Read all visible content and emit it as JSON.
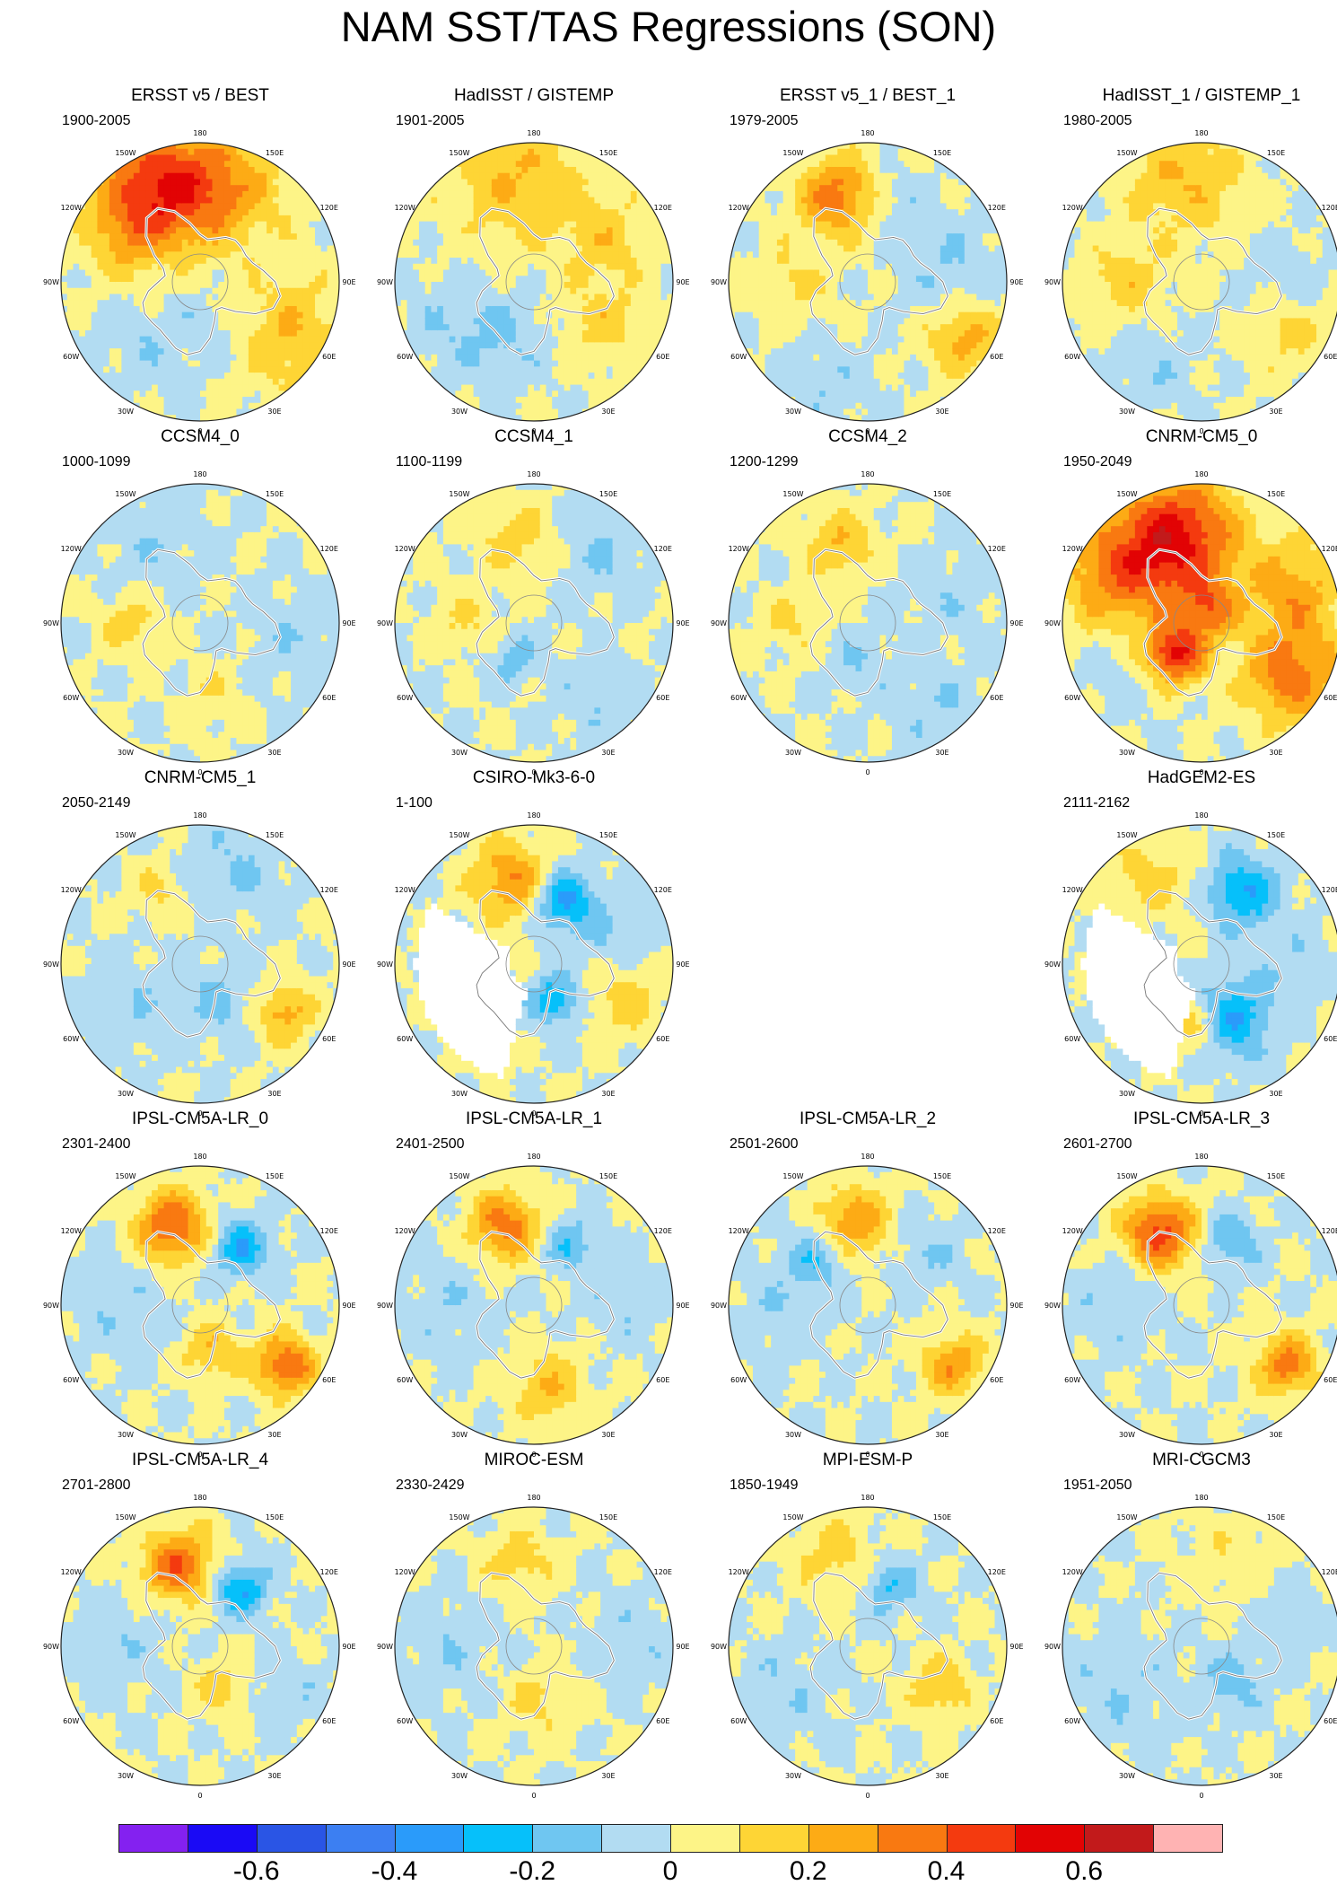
{
  "title": "NAM SST/TAS Regressions (SON)",
  "longitude_labels": [
    "180",
    "150E",
    "120E",
    "90E",
    "60E",
    "30E",
    "0",
    "30W",
    "60W",
    "90W",
    "120W",
    "150W"
  ],
  "panels": [
    {
      "title": "ERSST v5 / BEST",
      "period": "1900-2005",
      "masked": false,
      "anomalies": [
        {
          "lon": 155,
          "r": 0.75,
          "v": 0.45,
          "s": 0.3
        },
        {
          "lon": 195,
          "r": 0.7,
          "v": 0.25,
          "s": 0.3
        },
        {
          "lon": 120,
          "r": 0.62,
          "v": 0.15,
          "s": 0.2
        },
        {
          "lon": 300,
          "r": 0.75,
          "v": 0.2,
          "s": 0.3
        },
        {
          "lon": 40,
          "r": 0.6,
          "v": -0.08,
          "s": 0.22
        },
        {
          "lon": 340,
          "r": 0.35,
          "v": -0.08,
          "s": 0.2
        }
      ]
    },
    {
      "title": "HadISST / GISTEMP",
      "period": "1901-2005",
      "masked": false,
      "anomalies": [
        {
          "lon": 170,
          "r": 0.75,
          "v": 0.2,
          "s": 0.35
        },
        {
          "lon": 240,
          "r": 0.6,
          "v": 0.15,
          "s": 0.22
        },
        {
          "lon": 300,
          "r": 0.6,
          "v": 0.15,
          "s": 0.2
        },
        {
          "lon": 60,
          "r": 0.6,
          "v": -0.1,
          "s": 0.25
        },
        {
          "lon": 20,
          "r": 0.45,
          "v": -0.08,
          "s": 0.2
        }
      ]
    },
    {
      "title": "ERSST v5_1 / BEST_1",
      "period": "1979-2005",
      "masked": false,
      "anomalies": [
        {
          "lon": 160,
          "r": 0.65,
          "v": 0.35,
          "s": 0.2
        },
        {
          "lon": 300,
          "r": 0.8,
          "v": 0.25,
          "s": 0.18
        },
        {
          "lon": 260,
          "r": 0.6,
          "v": -0.1,
          "s": 0.25
        },
        {
          "lon": 90,
          "r": 0.55,
          "v": 0.12,
          "s": 0.2
        },
        {
          "lon": 20,
          "r": 0.8,
          "v": -0.08,
          "s": 0.2
        },
        {
          "lon": 200,
          "r": 0.6,
          "v": -0.08,
          "s": 0.15
        }
      ]
    },
    {
      "title": "HadISST_1 / GISTEMP_1",
      "period": "1980-2005",
      "masked": false,
      "anomalies": [
        {
          "lon": 170,
          "r": 0.75,
          "v": 0.2,
          "s": 0.3
        },
        {
          "lon": 90,
          "r": 0.55,
          "v": 0.15,
          "s": 0.2
        },
        {
          "lon": 300,
          "r": 0.7,
          "v": 0.15,
          "s": 0.2
        },
        {
          "lon": 270,
          "r": 0.6,
          "v": -0.08,
          "s": 0.2
        },
        {
          "lon": 30,
          "r": 0.7,
          "v": -0.08,
          "s": 0.2
        }
      ]
    },
    {
      "title": "CCSM4_0",
      "period": "1000-1099",
      "masked": false,
      "anomalies": [
        {
          "lon": 150,
          "r": 0.7,
          "v": -0.08,
          "s": 0.25
        },
        {
          "lon": 90,
          "r": 0.5,
          "v": 0.15,
          "s": 0.15
        },
        {
          "lon": 280,
          "r": 0.7,
          "v": -0.08,
          "s": 0.25
        },
        {
          "lon": 350,
          "r": 0.55,
          "v": 0.1,
          "s": 0.15
        }
      ]
    },
    {
      "title": "CCSM4_1",
      "period": "1100-1199",
      "masked": false,
      "anomalies": [
        {
          "lon": 170,
          "r": 0.6,
          "v": 0.15,
          "s": 0.2
        },
        {
          "lon": 220,
          "r": 0.7,
          "v": -0.1,
          "s": 0.25
        },
        {
          "lon": 90,
          "r": 0.5,
          "v": 0.12,
          "s": 0.15
        },
        {
          "lon": 30,
          "r": 0.3,
          "v": -0.15,
          "s": 0.12
        },
        {
          "lon": 320,
          "r": 0.75,
          "v": -0.08,
          "s": 0.22
        }
      ]
    },
    {
      "title": "CCSM4_2",
      "period": "1200-1299",
      "masked": false,
      "anomalies": [
        {
          "lon": 160,
          "r": 0.6,
          "v": 0.2,
          "s": 0.18
        },
        {
          "lon": 90,
          "r": 0.55,
          "v": 0.12,
          "s": 0.15
        },
        {
          "lon": 320,
          "r": 0.8,
          "v": -0.08,
          "s": 0.25
        },
        {
          "lon": 250,
          "r": 0.6,
          "v": -0.08,
          "s": 0.2
        },
        {
          "lon": 10,
          "r": 0.3,
          "v": -0.1,
          "s": 0.15
        }
      ]
    },
    {
      "title": "CNRM-CM5_0",
      "period": "1950-2049",
      "masked": false,
      "anomalies": [
        {
          "lon": 165,
          "r": 0.65,
          "v": 0.5,
          "s": 0.3
        },
        {
          "lon": 120,
          "r": 0.7,
          "v": 0.3,
          "s": 0.3
        },
        {
          "lon": 300,
          "r": 0.75,
          "v": 0.35,
          "s": 0.25
        },
        {
          "lon": 40,
          "r": 0.3,
          "v": 0.5,
          "s": 0.15
        },
        {
          "lon": 200,
          "r": 0.1,
          "v": 0.3,
          "s": 0.15
        },
        {
          "lon": 250,
          "r": 0.7,
          "v": 0.25,
          "s": 0.25
        },
        {
          "lon": 60,
          "r": 0.7,
          "v": -0.08,
          "s": 0.2
        }
      ]
    },
    {
      "title": "CNRM-CM5_1",
      "period": "2050-2149",
      "masked": false,
      "anomalies": [
        {
          "lon": 200,
          "r": 0.75,
          "v": -0.1,
          "s": 0.25
        },
        {
          "lon": 300,
          "r": 0.7,
          "v": 0.25,
          "s": 0.15
        },
        {
          "lon": 330,
          "r": 0.3,
          "v": -0.12,
          "s": 0.2
        },
        {
          "lon": 60,
          "r": 0.6,
          "v": -0.08,
          "s": 0.25
        },
        {
          "lon": 150,
          "r": 0.6,
          "v": 0.12,
          "s": 0.15
        }
      ]
    },
    {
      "title": "CSIRO-Mk3-6-0",
      "period": "1-100",
      "masked": true,
      "anomalies": [
        {
          "lon": 165,
          "r": 0.62,
          "v": 0.3,
          "s": 0.2
        },
        {
          "lon": 205,
          "r": 0.5,
          "v": -0.35,
          "s": 0.15
        },
        {
          "lon": 330,
          "r": 0.3,
          "v": -0.3,
          "s": 0.12
        },
        {
          "lon": 290,
          "r": 0.7,
          "v": 0.15,
          "s": 0.2
        },
        {
          "lon": 250,
          "r": 0.6,
          "v": -0.1,
          "s": 0.2
        }
      ]
    },
    {
      "title": "",
      "period": "",
      "masked": false,
      "blank": true,
      "anomalies": []
    },
    {
      "title": "HadGEM2-ES",
      "period": "2111-2162",
      "masked": true,
      "anomalies": [
        {
          "lon": 210,
          "r": 0.6,
          "v": -0.3,
          "s": 0.18
        },
        {
          "lon": 330,
          "r": 0.45,
          "v": -0.3,
          "s": 0.2
        },
        {
          "lon": 10,
          "r": 0.45,
          "v": 0.2,
          "s": 0.15
        },
        {
          "lon": 150,
          "r": 0.7,
          "v": 0.15,
          "s": 0.2
        },
        {
          "lon": 270,
          "r": 0.7,
          "v": -0.08,
          "s": 0.2
        }
      ]
    },
    {
      "title": "IPSL-CM5A-LR_0",
      "period": "2301-2400",
      "masked": false,
      "anomalies": [
        {
          "lon": 160,
          "r": 0.6,
          "v": 0.4,
          "s": 0.18
        },
        {
          "lon": 215,
          "r": 0.5,
          "v": -0.3,
          "s": 0.14
        },
        {
          "lon": 305,
          "r": 0.75,
          "v": 0.4,
          "s": 0.15
        },
        {
          "lon": 345,
          "r": 0.35,
          "v": 0.2,
          "s": 0.15
        },
        {
          "lon": 90,
          "r": 0.6,
          "v": -0.08,
          "s": 0.25
        }
      ]
    },
    {
      "title": "IPSL-CM5A-LR_1",
      "period": "2401-2500",
      "masked": false,
      "anomalies": [
        {
          "lon": 160,
          "r": 0.6,
          "v": 0.35,
          "s": 0.18
        },
        {
          "lon": 210,
          "r": 0.5,
          "v": -0.2,
          "s": 0.14
        },
        {
          "lon": 350,
          "r": 0.6,
          "v": 0.2,
          "s": 0.18
        },
        {
          "lon": 90,
          "r": 0.6,
          "v": -0.08,
          "s": 0.25
        },
        {
          "lon": 270,
          "r": 0.65,
          "v": -0.08,
          "s": 0.2
        }
      ]
    },
    {
      "title": "IPSL-CM5A-LR_2",
      "period": "2501-2600",
      "masked": false,
      "anomalies": [
        {
          "lon": 170,
          "r": 0.6,
          "v": 0.3,
          "s": 0.18
        },
        {
          "lon": 135,
          "r": 0.5,
          "v": -0.2,
          "s": 0.14
        },
        {
          "lon": 305,
          "r": 0.75,
          "v": 0.3,
          "s": 0.15
        },
        {
          "lon": 90,
          "r": 0.6,
          "v": -0.08,
          "s": 0.25
        },
        {
          "lon": 230,
          "r": 0.55,
          "v": -0.1,
          "s": 0.18
        }
      ]
    },
    {
      "title": "IPSL-CM5A-LR_3",
      "period": "2601-2700",
      "masked": false,
      "anomalies": [
        {
          "lon": 150,
          "r": 0.6,
          "v": 0.45,
          "s": 0.18
        },
        {
          "lon": 205,
          "r": 0.5,
          "v": -0.2,
          "s": 0.14
        },
        {
          "lon": 305,
          "r": 0.75,
          "v": 0.35,
          "s": 0.15
        },
        {
          "lon": 90,
          "r": 0.6,
          "v": -0.08,
          "s": 0.25
        }
      ]
    },
    {
      "title": "IPSL-CM5A-LR_4",
      "period": "2701-2800",
      "masked": false,
      "anomalies": [
        {
          "lon": 165,
          "r": 0.6,
          "v": 0.4,
          "s": 0.18
        },
        {
          "lon": 215,
          "r": 0.5,
          "v": -0.3,
          "s": 0.14
        },
        {
          "lon": 90,
          "r": 0.6,
          "v": -0.08,
          "s": 0.25
        },
        {
          "lon": 300,
          "r": 0.7,
          "v": -0.08,
          "s": 0.2
        },
        {
          "lon": 330,
          "r": 0.35,
          "v": 0.15,
          "s": 0.15
        }
      ]
    },
    {
      "title": "MIROC-ESM",
      "period": "2330-2429",
      "masked": false,
      "anomalies": [
        {
          "lon": 170,
          "r": 0.6,
          "v": 0.15,
          "s": 0.18
        },
        {
          "lon": 90,
          "r": 0.6,
          "v": -0.08,
          "s": 0.25
        },
        {
          "lon": 270,
          "r": 0.7,
          "v": -0.08,
          "s": 0.25
        },
        {
          "lon": 350,
          "r": 0.4,
          "v": 0.12,
          "s": 0.2
        }
      ]
    },
    {
      "title": "MPI-ESM-P",
      "period": "1850-1949",
      "masked": false,
      "anomalies": [
        {
          "lon": 200,
          "r": 0.45,
          "v": -0.2,
          "s": 0.14
        },
        {
          "lon": 160,
          "r": 0.7,
          "v": 0.15,
          "s": 0.2
        },
        {
          "lon": 300,
          "r": 0.6,
          "v": 0.2,
          "s": 0.15
        },
        {
          "lon": 60,
          "r": 0.7,
          "v": -0.08,
          "s": 0.25
        }
      ]
    },
    {
      "title": "MRI-CGCM3",
      "period": "1951-2050",
      "masked": false,
      "anomalies": [
        {
          "lon": 320,
          "r": 0.35,
          "v": -0.15,
          "s": 0.15
        },
        {
          "lon": 60,
          "r": 0.65,
          "v": -0.08,
          "s": 0.3
        },
        {
          "lon": 200,
          "r": 0.65,
          "v": 0.08,
          "s": 0.25
        },
        {
          "lon": 250,
          "r": 0.6,
          "v": -0.08,
          "s": 0.2
        }
      ]
    }
  ],
  "colorbar": {
    "colors": [
      "#8421f0",
      "#1a0af5",
      "#2a55e5",
      "#3c7ff2",
      "#2a9bfa",
      "#06c0fa",
      "#6fc6f1",
      "#b2dcf2",
      "#fdf487",
      "#fed535",
      "#fdab15",
      "#f97911",
      "#f43a0f",
      "#e20304",
      "#c21a1b",
      "#ffb3b3"
    ],
    "levels": [
      -0.7,
      -0.6,
      -0.5,
      -0.4,
      -0.3,
      -0.2,
      -0.1,
      0,
      0.1,
      0.2,
      0.3,
      0.4,
      0.5,
      0.6,
      0.7
    ],
    "tick_labels": [
      "-0.6",
      "-0.4",
      "-0.2",
      "0",
      "0.2",
      "0.4",
      "0.6"
    ]
  }
}
